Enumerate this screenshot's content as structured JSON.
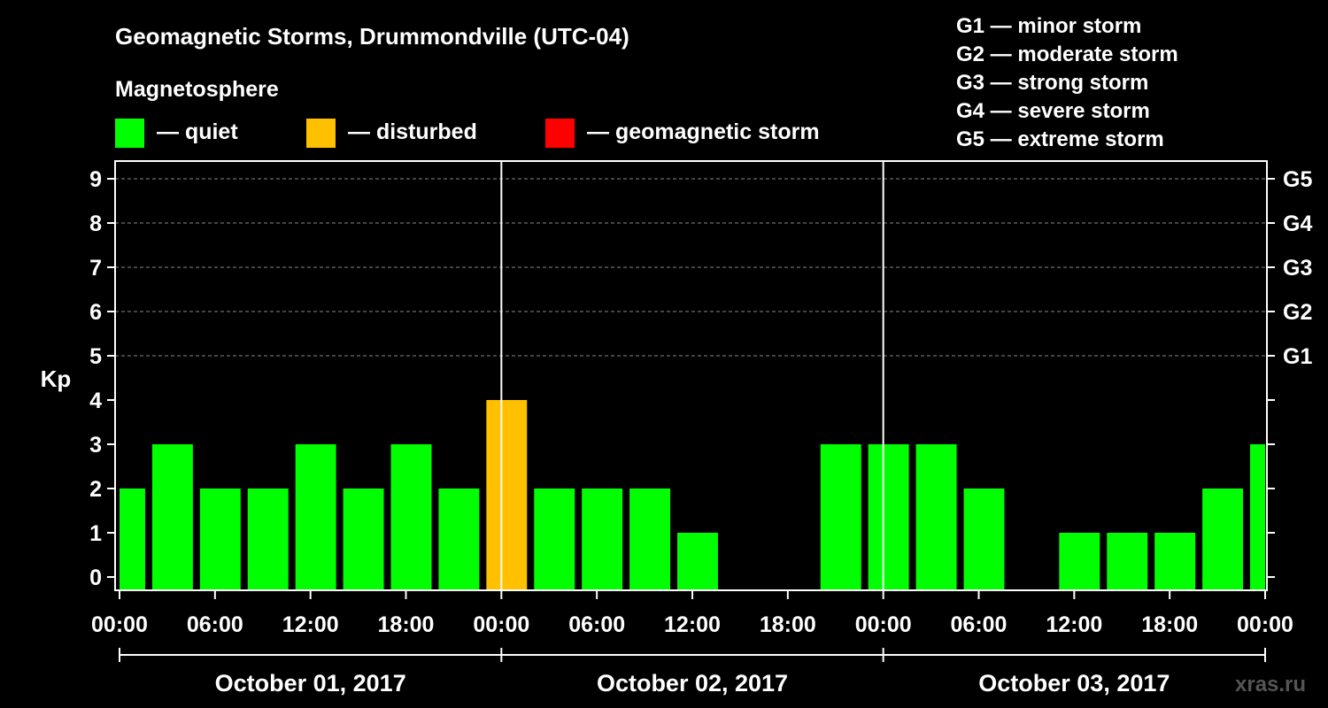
{
  "chart_data": {
    "type": "bar",
    "title": "Geomagnetic Storms, Drummondville (UTC-04)",
    "subtitle": "Magnetosphere",
    "ylabel": "Kp",
    "ylim": [
      0,
      9
    ],
    "yticks": [
      "0",
      "1",
      "2",
      "3",
      "4",
      "5",
      "6",
      "7",
      "8",
      "9"
    ],
    "right_ticks": [
      {
        "kp": 5,
        "label": "G1"
      },
      {
        "kp": 6,
        "label": "G2"
      },
      {
        "kp": 7,
        "label": "G3"
      },
      {
        "kp": 8,
        "label": "G4"
      },
      {
        "kp": 9,
        "label": "G5"
      }
    ],
    "status_legend": [
      {
        "label": "— quiet",
        "color": "#00ff00"
      },
      {
        "label": "— disturbed",
        "color": "#ffc000"
      },
      {
        "label": "— geomagnetic storm",
        "color": "#ff0000"
      }
    ],
    "scale_legend": [
      "G1 — minor storm",
      "G2 — moderate storm",
      "G3 — strong storm",
      "G4 — severe storm",
      "G5 — extreme storm"
    ],
    "xticks": [
      "00:00",
      "06:00",
      "12:00",
      "18:00",
      "00:00",
      "06:00",
      "12:00",
      "18:00",
      "00:00",
      "06:00",
      "12:00",
      "18:00",
      "00:00"
    ],
    "dates": [
      "October 01, 2017",
      "October 02, 2017",
      "October 03, 2017"
    ],
    "day_boundaries_h": [
      24,
      48
    ],
    "bars": [
      {
        "start_h": 0,
        "end_h": 2,
        "kp": 2
      },
      {
        "start_h": 2,
        "end_h": 5,
        "kp": 3
      },
      {
        "start_h": 5,
        "end_h": 8,
        "kp": 2
      },
      {
        "start_h": 8,
        "end_h": 11,
        "kp": 2
      },
      {
        "start_h": 11,
        "end_h": 14,
        "kp": 3
      },
      {
        "start_h": 14,
        "end_h": 17,
        "kp": 2
      },
      {
        "start_h": 17,
        "end_h": 20,
        "kp": 3
      },
      {
        "start_h": 20,
        "end_h": 23,
        "kp": 2
      },
      {
        "start_h": 23,
        "end_h": 26,
        "kp": 4
      },
      {
        "start_h": 26,
        "end_h": 29,
        "kp": 2
      },
      {
        "start_h": 29,
        "end_h": 32,
        "kp": 2
      },
      {
        "start_h": 32,
        "end_h": 35,
        "kp": 2
      },
      {
        "start_h": 35,
        "end_h": 38,
        "kp": 1
      },
      {
        "start_h": 38,
        "end_h": 41,
        "kp": 0
      },
      {
        "start_h": 41,
        "end_h": 44,
        "kp": 0
      },
      {
        "start_h": 44,
        "end_h": 47,
        "kp": 3
      },
      {
        "start_h": 47,
        "end_h": 50,
        "kp": 3
      },
      {
        "start_h": 50,
        "end_h": 53,
        "kp": 3
      },
      {
        "start_h": 53,
        "end_h": 56,
        "kp": 2
      },
      {
        "start_h": 56,
        "end_h": 59,
        "kp": 0
      },
      {
        "start_h": 59,
        "end_h": 62,
        "kp": 1
      },
      {
        "start_h": 62,
        "end_h": 65,
        "kp": 1
      },
      {
        "start_h": 65,
        "end_h": 68,
        "kp": 1
      },
      {
        "start_h": 68,
        "end_h": 71,
        "kp": 2
      },
      {
        "start_h": 71,
        "end_h": 72,
        "kp": 3
      }
    ],
    "colors": {
      "quiet": "#00ff00",
      "disturbed": "#ffc000",
      "storm": "#ff0000",
      "grid": "#888888"
    },
    "grid": true
  },
  "watermark": "xras.ru"
}
